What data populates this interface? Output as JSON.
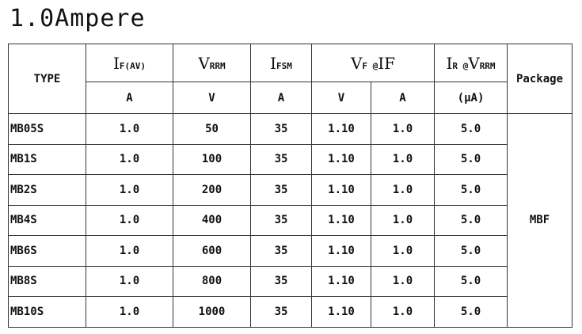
{
  "title": "1.0Ampere",
  "table": {
    "header": {
      "type": "TYPE",
      "package": "Package",
      "params": [
        {
          "parts": [
            {
              "text": "I",
              "sub": false
            },
            {
              "text": "F(AV)",
              "sub": true
            }
          ]
        },
        {
          "parts": [
            {
              "text": "V",
              "sub": false
            },
            {
              "text": "RRM",
              "sub": true
            }
          ]
        },
        {
          "parts": [
            {
              "text": "I",
              "sub": false
            },
            {
              "text": "FSM",
              "sub": true
            }
          ]
        },
        {
          "parts": [
            {
              "text": "V",
              "sub": false
            },
            {
              "text": "F",
              "sub": true
            },
            {
              "text": " @",
              "sub": true
            },
            {
              "text": "IF",
              "sub": false
            }
          ]
        },
        {
          "parts": [
            {
              "text": "I",
              "sub": false
            },
            {
              "text": "R",
              "sub": true
            },
            {
              "text": " @",
              "sub": true
            },
            {
              "text": "V",
              "sub": false
            },
            {
              "text": "RRM",
              "sub": true
            }
          ]
        }
      ],
      "units": [
        "A",
        "V",
        "A",
        "V",
        "A",
        "(μA)"
      ]
    },
    "rows": [
      [
        "MB05S",
        "1.0",
        "50",
        "35",
        "1.10",
        "1.0",
        "5.0"
      ],
      [
        "MB1S",
        "1.0",
        "100",
        "35",
        "1.10",
        "1.0",
        "5.0"
      ],
      [
        "MB2S",
        "1.0",
        "200",
        "35",
        "1.10",
        "1.0",
        "5.0"
      ],
      [
        "MB4S",
        "1.0",
        "400",
        "35",
        "1.10",
        "1.0",
        "5.0"
      ],
      [
        "MB6S",
        "1.0",
        "600",
        "35",
        "1.10",
        "1.0",
        "5.0"
      ],
      [
        "MB8S",
        "1.0",
        "800",
        "35",
        "1.10",
        "1.0",
        "5.0"
      ],
      [
        "MB10S",
        "1.0",
        "1000",
        "35",
        "1.10",
        "1.0",
        "5.0"
      ]
    ],
    "package": "MBF"
  }
}
